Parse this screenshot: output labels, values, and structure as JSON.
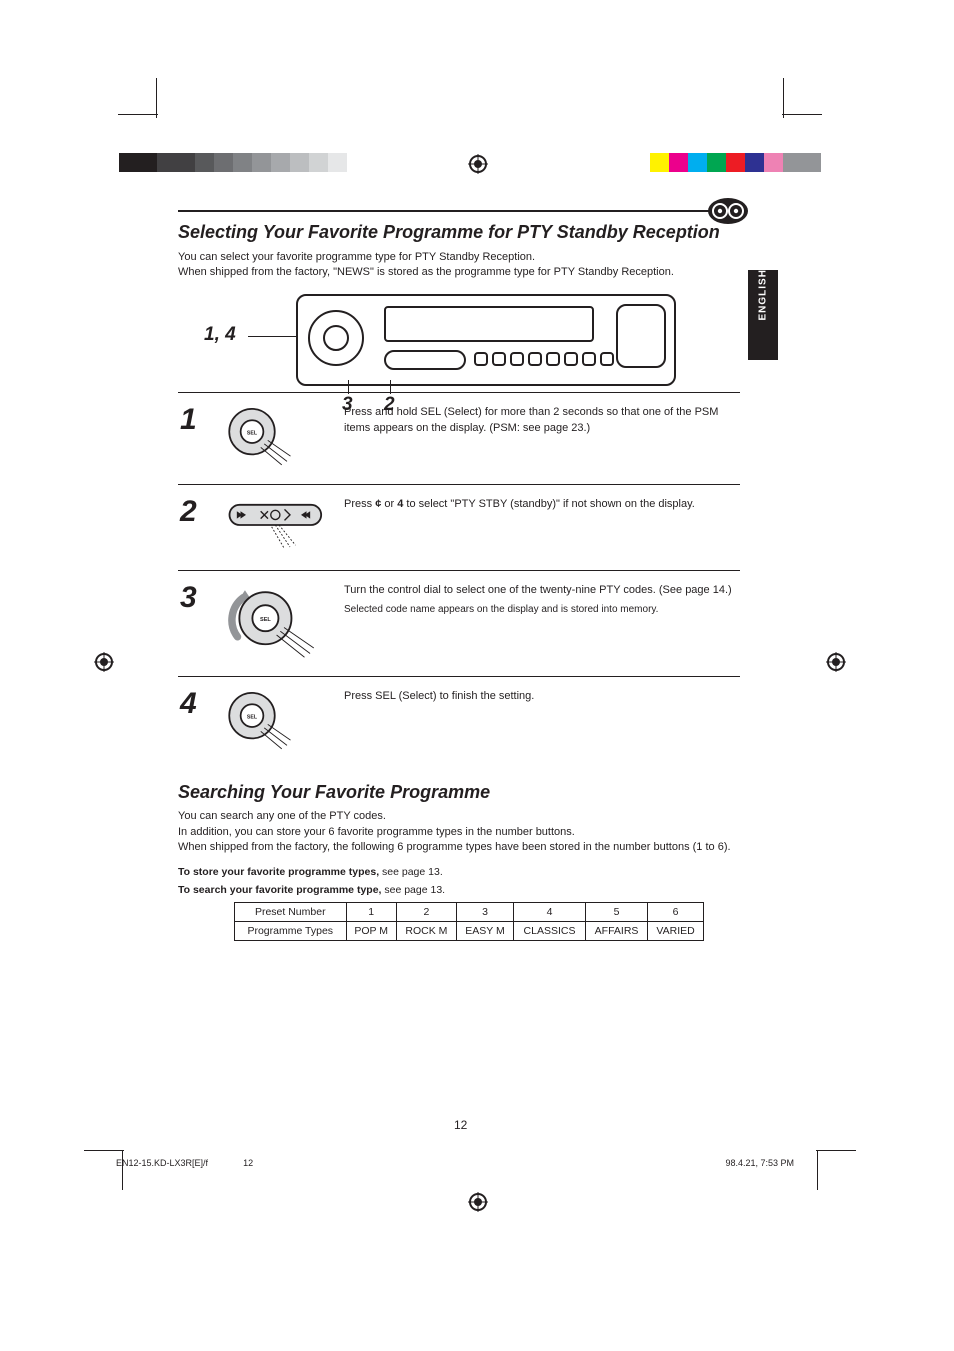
{
  "lang_tab": "ENGLISH",
  "title": "Selecting Your Favorite Programme for PTY Standby Reception",
  "intro": "You can select your favorite programme type for PTY Standby Reception.",
  "intro2": "When shipped from the factory, \"NEWS\" is stored as the programme type for PTY Standby Reception.",
  "callouts": {
    "a": "1, 4",
    "b": "3",
    "c": "2"
  },
  "steps": [
    {
      "n": "1",
      "body": "Press and hold SEL (Select) for more than 2 seconds so that one of the PSM items appears on the display. (PSM: see page 23.)"
    },
    {
      "n": "2",
      "body_pre": "Press ",
      "btn1": "¢",
      "mid": " or ",
      "btn2": "4",
      "body_post": " to select \"PTY STBY (standby)\" if not shown on the display."
    },
    {
      "n": "3",
      "body": "Turn the control dial to select one of the twenty-nine PTY codes. (See page 14.)",
      "note": "Selected code name appears on the display and is stored into memory."
    },
    {
      "n": "4",
      "body": "Press SEL (Select) to finish the setting."
    }
  ],
  "section2_title": "Searching Your Favorite Programme",
  "section2_intro": "You can search any one of the PTY codes.",
  "section2_intro2": "In addition, you can store your 6 favorite programme types in the number buttons.",
  "section2_intro3": "When shipped from the factory, the following 6 programme types have been stored in the number buttons (1 to 6).",
  "section2_line4a": "To store your favorite programme types,",
  "section2_line4b": " see page 13.",
  "section2_line5a": "To search your favorite programme type,",
  "section2_line5b": " see page 13.",
  "table": {
    "header": [
      "Preset Number",
      "1",
      "2",
      "3",
      "4",
      "5",
      "6"
    ],
    "row_label": "Programme Types",
    "row": [
      "POP M",
      "ROCK M",
      "EASY M",
      "CLASSICS",
      "AFFAIRS",
      "VARIED"
    ]
  },
  "page_number": "12",
  "footer_filename": "EN12-15.KD-LX3R[E]/f",
  "footer_timestamp": "98.4.21, 7:53 PM",
  "footer_pageidx": "12",
  "colors": {
    "text": "#231f20",
    "bg": "#ffffff"
  },
  "colorbar_left": [
    "#231f20",
    "#231f20",
    "#414042",
    "#414042",
    "#58595b",
    "#6d6e71",
    "#808285",
    "#939598",
    "#a7a9ac",
    "#bcbec0",
    "#d1d3d4",
    "#e6e7e8",
    "#ffffff"
  ],
  "colorbar_right": [
    "#fff200",
    "#ec008c",
    "#00aeef",
    "#00a651",
    "#ed1c24",
    "#2e3192",
    "#ee82b4",
    "#939598",
    "#939598"
  ]
}
